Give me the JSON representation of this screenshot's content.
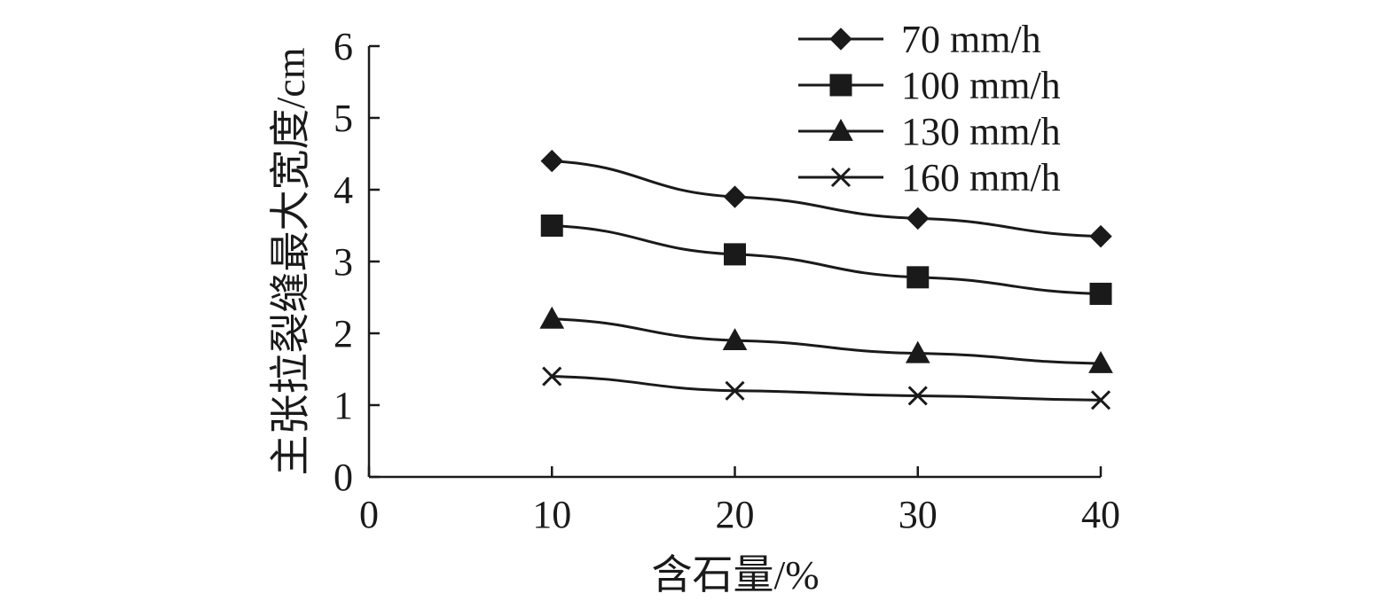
{
  "chart_data": {
    "type": "line",
    "title": "",
    "xlabel": "含石量/%",
    "ylabel": "主张拉裂缝最大宽度/cm",
    "xlim": [
      0,
      40
    ],
    "ylim": [
      0,
      6
    ],
    "xticks": [
      0,
      10,
      20,
      30,
      40
    ],
    "yticks": [
      0,
      1,
      2,
      3,
      4,
      5,
      6
    ],
    "x": [
      10,
      20,
      30,
      40
    ],
    "grid": false,
    "legend_position": "top-right",
    "series": [
      {
        "name": "70 mm/h",
        "marker": "diamond",
        "values": [
          4.4,
          3.9,
          3.6,
          3.35
        ]
      },
      {
        "name": "100 mm/h",
        "marker": "square",
        "values": [
          3.5,
          3.1,
          2.78,
          2.55
        ]
      },
      {
        "name": "130 mm/h",
        "marker": "triangle",
        "values": [
          2.2,
          1.9,
          1.72,
          1.58
        ]
      },
      {
        "name": "160 mm/h",
        "marker": "x",
        "values": [
          1.4,
          1.2,
          1.13,
          1.07
        ]
      }
    ]
  }
}
